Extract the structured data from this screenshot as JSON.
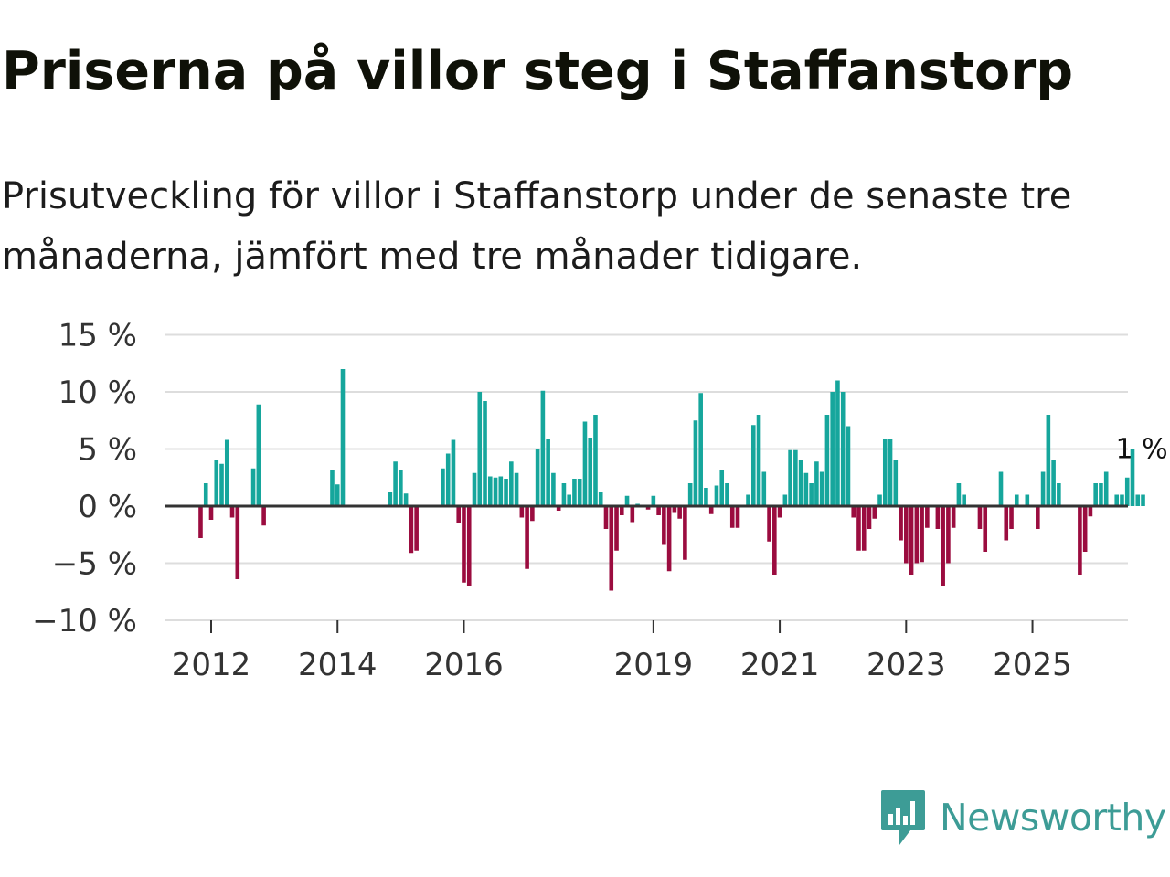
{
  "title": "Priserna på villor steg i Staffanstorp",
  "subtitle": "Prisutveckling för villor i Staffanstorp under de senaste tre månaderna, jämfört med tre månader tidigare.",
  "brand": "Newsworthy",
  "colors": {
    "positive": "#16a69c",
    "negative": "#9b0c3f",
    "zero_line": "#333333",
    "grid": "#dddddd",
    "brand": "#3d9c96"
  },
  "chart_data": {
    "type": "bar",
    "title": "Priserna på villor steg i Staffanstorp",
    "xlabel": "",
    "ylabel": "",
    "ylim": [
      -10,
      15
    ],
    "yticks": [
      {
        "value": 15,
        "label": "15 %"
      },
      {
        "value": 10,
        "label": "10 %"
      },
      {
        "value": 5,
        "label": "5 %"
      },
      {
        "value": 0,
        "label": "0 %"
      },
      {
        "value": -5,
        "label": "−5 %"
      },
      {
        "value": -10,
        "label": "−10 %"
      }
    ],
    "xticks": [
      {
        "year": 2012,
        "label": "2012"
      },
      {
        "year": 2014,
        "label": "2014"
      },
      {
        "year": 2016,
        "label": "2016"
      },
      {
        "year": 2019,
        "label": "2019"
      },
      {
        "year": 2021,
        "label": "2021"
      },
      {
        "year": 2023,
        "label": "2023"
      },
      {
        "year": 2025,
        "label": "2025"
      }
    ],
    "start": {
      "year": 2011,
      "month": 11
    },
    "values": [
      -2.8,
      2.0,
      -1.2,
      4.0,
      3.7,
      5.8,
      -1.0,
      -6.4,
      0,
      0,
      3.3,
      8.9,
      -1.7,
      0,
      0,
      0,
      0,
      0,
      0,
      0,
      0,
      0,
      0,
      0,
      0,
      3.2,
      1.9,
      12.0,
      0,
      0,
      0,
      0,
      0,
      0,
      0,
      0,
      1.2,
      3.9,
      3.2,
      1.1,
      -4.1,
      -3.9,
      0,
      0,
      0,
      0,
      3.3,
      4.6,
      5.8,
      -1.5,
      -6.7,
      -7.0,
      2.9,
      10.0,
      9.2,
      2.6,
      2.5,
      2.6,
      2.4,
      3.9,
      2.9,
      -1.0,
      -5.5,
      -1.3,
      5.0,
      10.1,
      5.9,
      2.9,
      -0.4,
      2.0,
      1.0,
      2.4,
      2.4,
      7.4,
      6.0,
      8.0,
      1.2,
      -2.0,
      -7.4,
      -3.9,
      -0.8,
      0.9,
      -1.4,
      0.2,
      0,
      -0.3,
      0.9,
      -0.8,
      -3.4,
      -5.7,
      -0.6,
      -1.1,
      -4.7,
      2.0,
      7.5,
      9.9,
      1.6,
      -0.7,
      1.8,
      3.2,
      2.0,
      -1.9,
      -1.9,
      0,
      1.0,
      7.1,
      8.0,
      3.0,
      -3.1,
      -6.0,
      -1.0,
      1.0,
      4.9,
      4.9,
      4.0,
      2.9,
      2.0,
      3.9,
      3.0,
      8.0,
      10.0,
      11.0,
      10.0,
      7.0,
      -1.0,
      -3.9,
      -3.9,
      -2.0,
      -1.1,
      1.0,
      5.9,
      5.9,
      4.0,
      -3.0,
      -5.0,
      -6.0,
      -5.0,
      -4.9,
      -1.9,
      0,
      -2.0,
      -7.0,
      -5.0,
      -1.9,
      2.0,
      1.0,
      0,
      0,
      -2.0,
      -4.0,
      0,
      0,
      3.0,
      -3.0,
      -2.0,
      1.0,
      0,
      1.0,
      0,
      -2.0,
      3.0,
      8.0,
      4.0,
      2.0,
      0,
      0,
      0,
      -6.0,
      -4.0,
      -0.9,
      2.0,
      2.0,
      3.0,
      0,
      1.0,
      1.0,
      2.5,
      5.0,
      1.0,
      1.0
    ],
    "annotation": {
      "label": "1 %",
      "value": 1
    }
  }
}
